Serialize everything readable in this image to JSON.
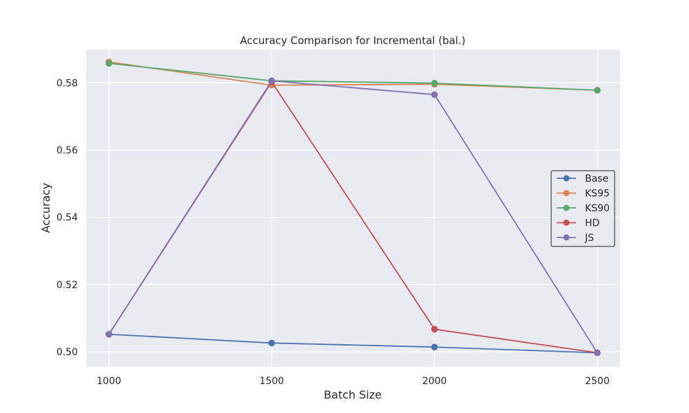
{
  "chart_data": {
    "type": "line",
    "title": "Accuracy Comparison for Incremental (bal.)",
    "xlabel": "Batch Size",
    "ylabel": "Accuracy",
    "x": [
      1000,
      1500,
      2000,
      2500
    ],
    "x_ticks": [
      "1000",
      "1500",
      "2000",
      "2500"
    ],
    "y_ticks": [
      "0.50",
      "0.52",
      "0.54",
      "0.56",
      "0.58"
    ],
    "xlim": [
      930,
      2570
    ],
    "ylim": [
      0.4955,
      0.5899
    ],
    "grid": true,
    "legend_position": "center-right",
    "series": [
      {
        "name": "Base",
        "color": "#4c72b0",
        "values": [
          0.5052,
          0.5026,
          0.5014,
          0.4997
        ]
      },
      {
        "name": "KS95",
        "color": "#dd8452",
        "values": [
          0.5862,
          0.5793,
          0.5796,
          0.5778
        ]
      },
      {
        "name": "KS90",
        "color": "#55a868",
        "values": [
          0.5858,
          0.5806,
          0.5799,
          0.5778
        ]
      },
      {
        "name": "HD",
        "color": "#c44e52",
        "values": [
          0.5052,
          0.5803,
          0.5067,
          0.4997
        ]
      },
      {
        "name": "JS",
        "color": "#8172b3",
        "values": [
          0.5052,
          0.5806,
          0.5765,
          0.4997
        ]
      }
    ]
  }
}
